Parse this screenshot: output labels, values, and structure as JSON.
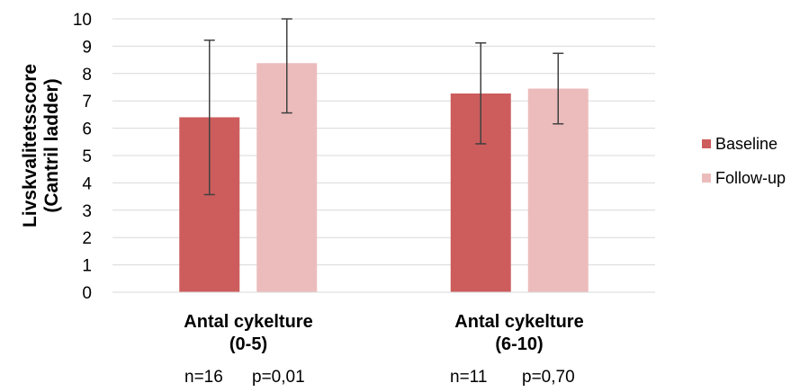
{
  "chart_data": {
    "type": "bar",
    "ylabel_lines": [
      "Livskvalitetsscore",
      "(Cantril ladder)"
    ],
    "ylim": [
      0,
      10
    ],
    "yticks": [
      "0",
      "1",
      "2",
      "3",
      "4",
      "5",
      "6",
      "7",
      "8",
      "9",
      "10"
    ],
    "grid": true,
    "legend_position": "right",
    "categories": [
      {
        "lines": [
          "Antal cykelture",
          "(0-5)"
        ],
        "n": "n=16",
        "p": "p=0,01"
      },
      {
        "lines": [
          "Antal cykelture",
          "(6-10)"
        ],
        "n": "n=11",
        "p": "p=0,70"
      }
    ],
    "series": [
      {
        "name": "Baseline",
        "color": "#cd5c5c",
        "values": [
          6.4,
          7.27
        ],
        "err_low": [
          3.57,
          5.43
        ],
        "err_high": [
          9.22,
          9.12
        ]
      },
      {
        "name": "Follow-up",
        "color": "#ecbcbc",
        "values": [
          8.38,
          7.45
        ],
        "err_low": [
          6.56,
          6.16
        ],
        "err_high": [
          10.0,
          8.74
        ]
      }
    ]
  }
}
